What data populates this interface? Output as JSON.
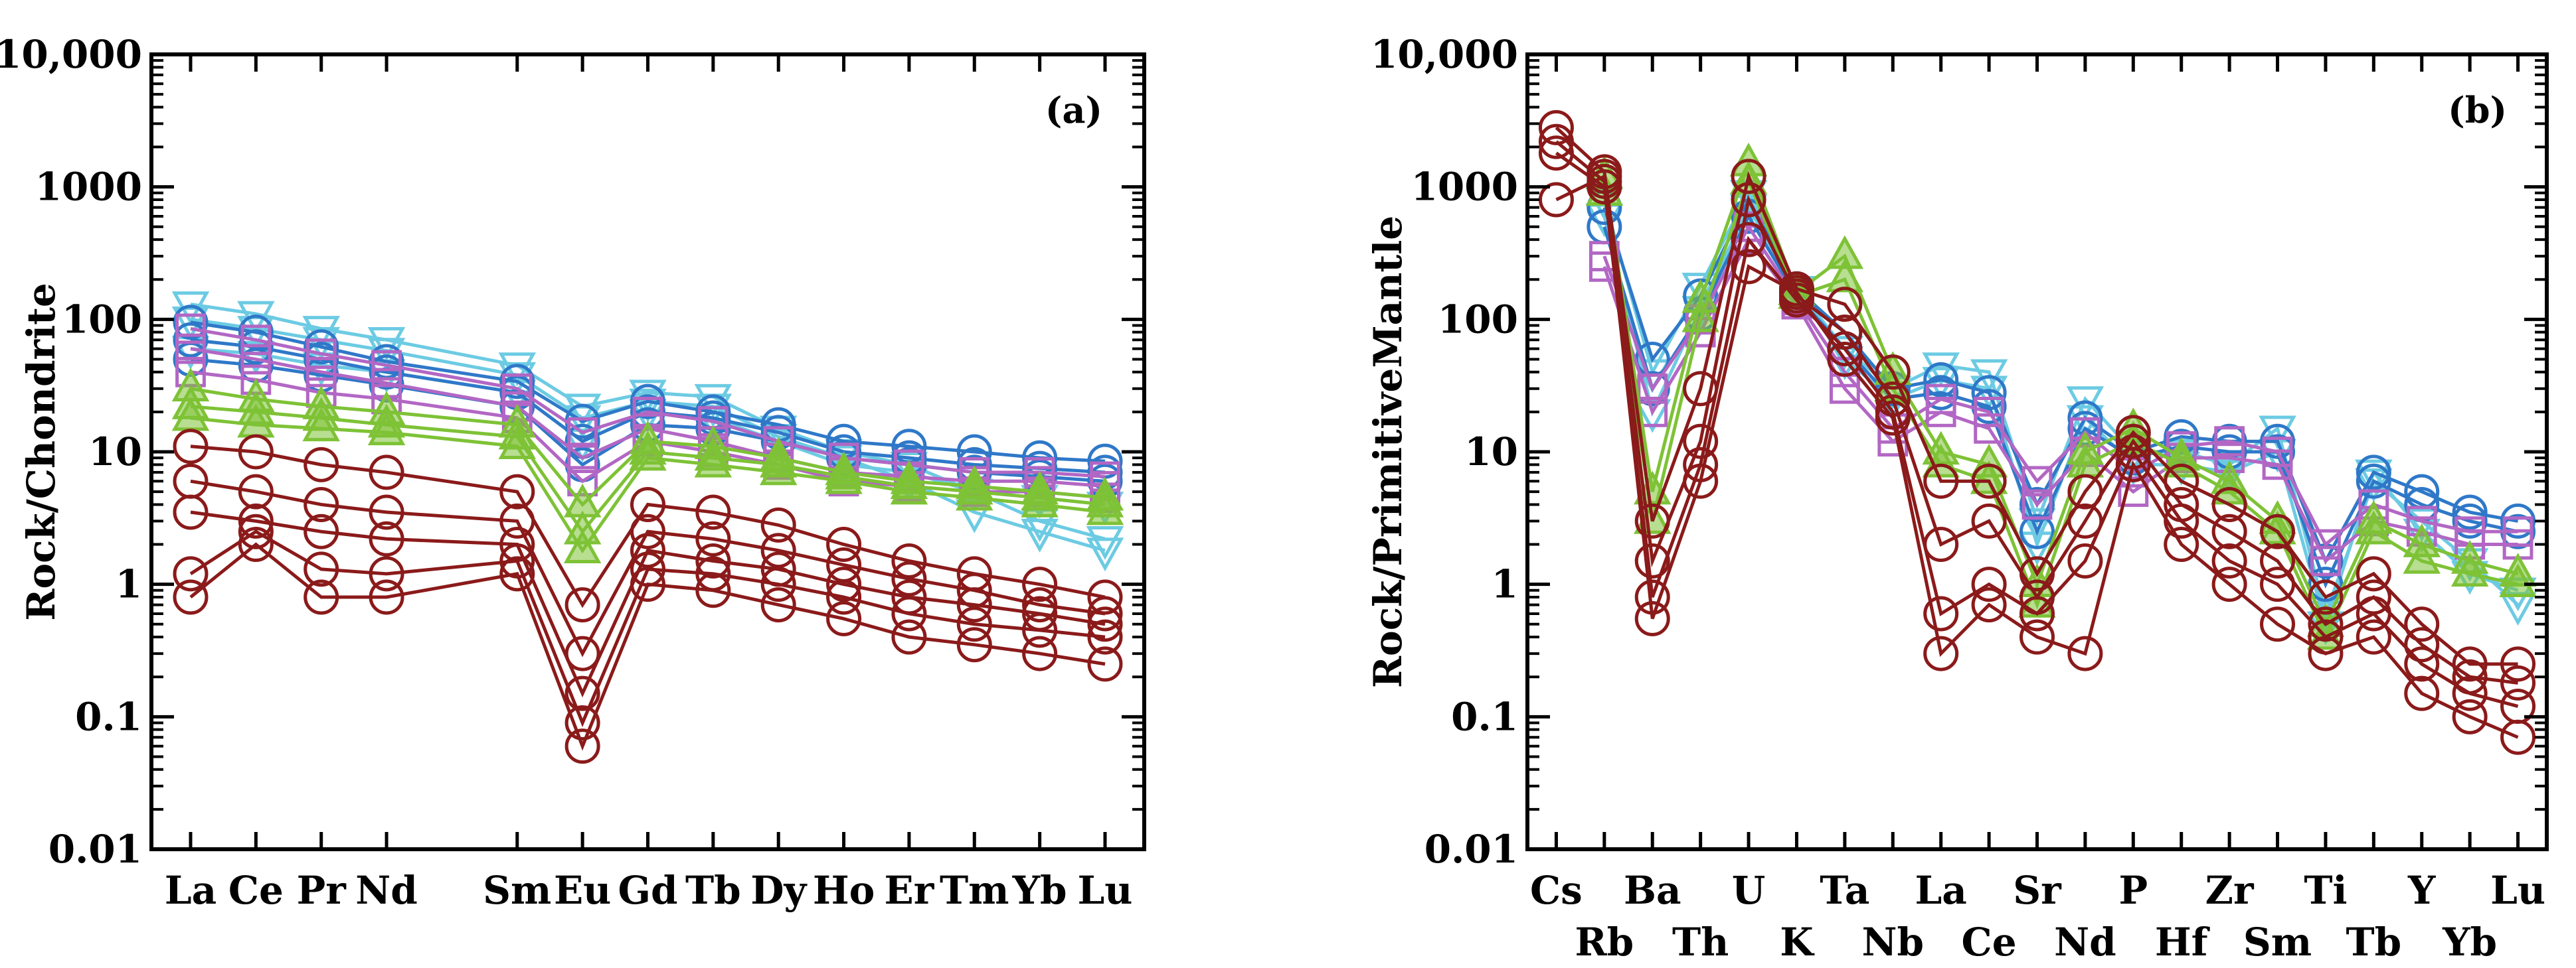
{
  "colors": {
    "darkred": "#8b1a1a",
    "green": "#7ec236",
    "purple": "#b267c4",
    "lightblue": "#6ccbe3",
    "blue": "#2f78c8"
  },
  "chart_data": [
    {
      "type": "line",
      "scale": "log",
      "panel_label": "(a)",
      "ylabel": "Rock/Chondrite",
      "ylim": [
        0.01,
        10000
      ],
      "y_ticks": [
        0.01,
        0.1,
        1,
        10,
        100,
        1000,
        10000
      ],
      "y_tick_labels": [
        "0.01",
        "0.1",
        "1",
        "10",
        "100",
        "1000",
        "10,000"
      ],
      "categories": [
        "La",
        "Ce",
        "Pr",
        "Nd",
        "Sm",
        "Eu",
        "Gd",
        "Tb",
        "Dy",
        "Ho",
        "Er",
        "Tm",
        "Yb",
        "Lu"
      ],
      "x_positions": [
        0,
        1,
        2,
        3,
        5,
        6,
        7,
        8,
        9,
        10,
        11,
        12,
        13,
        14
      ],
      "xlim": [
        -0.6,
        14.6
      ],
      "label_rows": [
        0,
        0,
        0,
        0,
        0,
        0,
        0,
        0,
        0,
        0,
        0,
        0,
        0,
        0
      ],
      "series": [
        {
          "name": "lb1",
          "color": "lightblue",
          "marker": "triangle-down",
          "values": [
            130,
            110,
            85,
            70,
            45,
            22,
            28,
            26,
            15,
            10,
            8,
            5,
            3,
            2.2
          ]
        },
        {
          "name": "lb2",
          "color": "lightblue",
          "marker": "triangle-down",
          "values": [
            100,
            85,
            70,
            58,
            38,
            18,
            24,
            22,
            13,
            9,
            6,
            3.5,
            2.5,
            1.8
          ]
        },
        {
          "name": "lb3",
          "color": "lightblue",
          "marker": "triangle-down",
          "values": [
            60,
            55,
            45,
            40,
            28,
            12,
            20,
            18,
            12,
            8,
            7,
            5,
            4.5,
            4
          ]
        },
        {
          "name": "b1",
          "color": "blue",
          "marker": "circle",
          "values": [
            95,
            80,
            62,
            48,
            34,
            17,
            24,
            20,
            16,
            12,
            11,
            10,
            9,
            8.5
          ]
        },
        {
          "name": "b2",
          "color": "blue",
          "marker": "circle",
          "values": [
            70,
            62,
            50,
            40,
            28,
            12,
            20,
            18,
            14,
            10,
            9,
            8,
            7.5,
            7
          ]
        },
        {
          "name": "b3",
          "color": "blue",
          "marker": "circle",
          "values": [
            50,
            45,
            38,
            32,
            22,
            8,
            16,
            15,
            12,
            9,
            8,
            7,
            6.5,
            6
          ]
        },
        {
          "name": "p1",
          "color": "purple",
          "marker": "square",
          "values": [
            85,
            70,
            55,
            45,
            30,
            14,
            20,
            17,
            12,
            9,
            8,
            7,
            7,
            6.5
          ]
        },
        {
          "name": "p2",
          "color": "purple",
          "marker": "square",
          "values": [
            60,
            50,
            40,
            33,
            22,
            9,
            15,
            12,
            9,
            7,
            6.5,
            6,
            6,
            5.5
          ]
        },
        {
          "name": "p3",
          "color": "purple",
          "marker": "square",
          "values": [
            40,
            35,
            28,
            25,
            18,
            6,
            12,
            10,
            8,
            6,
            5.5,
            5,
            5,
            4.5
          ]
        },
        {
          "name": "g1",
          "color": "green",
          "marker": "triangle-up",
          "values": [
            30,
            25,
            22,
            20,
            16,
            4,
            12,
            11,
            9,
            7,
            6,
            5.5,
            5,
            4.5
          ]
        },
        {
          "name": "g2",
          "color": "green",
          "marker": "triangle-up",
          "values": [
            22,
            20,
            18,
            16,
            13,
            2.5,
            10,
            9,
            8,
            6.5,
            5.5,
            5,
            4.5,
            4
          ]
        },
        {
          "name": "g3",
          "color": "green",
          "marker": "triangle-up",
          "values": [
            18,
            16,
            15,
            14,
            11,
            1.8,
            9,
            8,
            7,
            6,
            5,
            4.5,
            4,
            3.5
          ]
        },
        {
          "name": "r1",
          "color": "darkred",
          "marker": "circle",
          "values": [
            11,
            10,
            8,
            7,
            5,
            0.7,
            4,
            3.5,
            2.8,
            2,
            1.5,
            1.2,
            1,
            0.8
          ]
        },
        {
          "name": "r2",
          "color": "darkred",
          "marker": "circle",
          "values": [
            6,
            5,
            4,
            3.5,
            3,
            0.3,
            2.5,
            2.2,
            1.8,
            1.4,
            1.1,
            0.9,
            0.7,
            0.6
          ]
        },
        {
          "name": "r3",
          "color": "darkred",
          "marker": "circle",
          "values": [
            3.5,
            3,
            2.5,
            2.2,
            2,
            0.15,
            1.8,
            1.5,
            1.3,
            1,
            0.8,
            0.7,
            0.6,
            0.5
          ]
        },
        {
          "name": "r4",
          "color": "darkred",
          "marker": "circle",
          "values": [
            1.2,
            2.5,
            1.3,
            1.2,
            1.5,
            0.09,
            1.3,
            1.2,
            1,
            0.8,
            0.6,
            0.5,
            0.45,
            0.4
          ]
        },
        {
          "name": "r5",
          "color": "darkred",
          "marker": "circle",
          "values": [
            0.8,
            2,
            0.8,
            0.8,
            1.2,
            0.06,
            1,
            0.9,
            0.7,
            0.55,
            0.4,
            0.35,
            0.3,
            0.25
          ]
        }
      ]
    },
    {
      "type": "line",
      "scale": "log",
      "panel_label": "(b)",
      "ylabel": "Rock/PrimitiveMantle",
      "ylim": [
        0.01,
        10000
      ],
      "y_ticks": [
        0.01,
        0.1,
        1,
        10,
        100,
        1000,
        10000
      ],
      "y_tick_labels": [
        "0.01",
        "0.1",
        "1",
        "10",
        "100",
        "1000",
        "10,000"
      ],
      "categories": [
        "Cs",
        "Rb",
        "Ba",
        "Th",
        "U",
        "K",
        "Ta",
        "Nb",
        "La",
        "Ce",
        "Sr",
        "Nd",
        "P",
        "Hf",
        "Zr",
        "Sm",
        "Ti",
        "Tb",
        "Y",
        "Yb",
        "Lu"
      ],
      "x_positions": [
        0,
        1,
        2,
        3,
        4,
        5,
        6,
        7,
        8,
        9,
        10,
        11,
        12,
        13,
        14,
        15,
        16,
        17,
        18,
        19,
        20
      ],
      "xlim": [
        -0.6,
        20.6
      ],
      "label_rows": [
        0,
        1,
        0,
        1,
        0,
        1,
        0,
        1,
        0,
        1,
        0,
        1,
        0,
        1,
        0,
        1,
        0,
        1,
        0,
        1,
        0
      ],
      "series": [
        {
          "name": "lb1",
          "color": "lightblue",
          "marker": "triangle-down",
          "values": [
            null,
            800,
            40,
            180,
            900,
            170,
            60,
            30,
            45,
            40,
            3,
            25,
            10,
            10,
            8,
            15,
            0.6,
            6,
            3,
            1.5,
            0.7
          ]
        },
        {
          "name": "lb2",
          "color": "lightblue",
          "marker": "triangle-down",
          "values": [
            null,
            600,
            20,
            120,
            700,
            160,
            50,
            25,
            35,
            30,
            2,
            18,
            8,
            8,
            7,
            10,
            0.5,
            7,
            2.5,
            1.2,
            0.9
          ]
        },
        {
          "name": "b1",
          "color": "blue",
          "marker": "circle",
          "values": [
            null,
            700,
            50,
            150,
            800,
            170,
            80,
            30,
            35,
            28,
            4,
            18,
            10,
            13,
            12,
            12,
            1.5,
            7,
            5,
            3.5,
            3
          ]
        },
        {
          "name": "b2",
          "color": "blue",
          "marker": "circle",
          "values": [
            null,
            500,
            30,
            110,
            600,
            150,
            60,
            25,
            28,
            22,
            2.5,
            15,
            9,
            11,
            10,
            10,
            1,
            6,
            4,
            3,
            2.5
          ]
        },
        {
          "name": "p1",
          "color": "purple",
          "marker": "square",
          "values": [
            null,
            300,
            30,
            100,
            500,
            140,
            40,
            15,
            25,
            20,
            6,
            14,
            7,
            11,
            12,
            10,
            2,
            4,
            3,
            2.5,
            2.5
          ]
        },
        {
          "name": "p2",
          "color": "purple",
          "marker": "square",
          "values": [
            null,
            250,
            20,
            80,
            400,
            130,
            30,
            12,
            20,
            15,
            4,
            10,
            5,
            9,
            9,
            8,
            1.5,
            3,
            2.5,
            2,
            2
          ]
        },
        {
          "name": "g1",
          "color": "green",
          "marker": "triangle-up",
          "values": [
            null,
            1200,
            5,
            140,
            1500,
            160,
            300,
            40,
            10,
            8,
            1,
            10,
            15,
            9,
            6,
            3,
            0.5,
            3,
            2,
            1.5,
            1.2
          ]
        },
        {
          "name": "g2",
          "color": "green",
          "marker": "triangle-up",
          "values": [
            null,
            900,
            3,
            100,
            1100,
            150,
            200,
            30,
            8,
            6,
            0.7,
            8,
            12,
            8,
            5,
            2.5,
            0.4,
            2.5,
            1.5,
            1.2,
            1
          ]
        },
        {
          "name": "r1",
          "color": "darkred",
          "marker": "circle",
          "values": [
            2800,
            1300,
            3,
            30,
            1200,
            170,
            130,
            40,
            6,
            6,
            1.2,
            5,
            14,
            6,
            4,
            2.5,
            0.8,
            1.2,
            0.5,
            0.25,
            0.25
          ]
        },
        {
          "name": "r2",
          "color": "darkred",
          "marker": "circle",
          "values": [
            2200,
            1100,
            1.5,
            12,
            800,
            150,
            80,
            25,
            2,
            3,
            0.8,
            3,
            12,
            4,
            2.5,
            1.5,
            0.5,
            0.8,
            0.35,
            0.2,
            0.18
          ]
        },
        {
          "name": "r3",
          "color": "darkred",
          "marker": "circle",
          "values": [
            1800,
            1000,
            0.8,
            8,
            400,
            140,
            60,
            20,
            0.6,
            1,
            0.6,
            1.5,
            10,
            3,
            1.5,
            1,
            0.4,
            0.6,
            0.25,
            0.15,
            0.12
          ]
        },
        {
          "name": "r4",
          "color": "darkred",
          "marker": "circle",
          "values": [
            800,
            1200,
            0.55,
            6,
            250,
            160,
            50,
            18,
            0.3,
            0.7,
            0.4,
            0.3,
            8,
            2,
            1,
            0.5,
            0.3,
            0.4,
            0.15,
            0.1,
            0.07
          ]
        }
      ]
    }
  ]
}
